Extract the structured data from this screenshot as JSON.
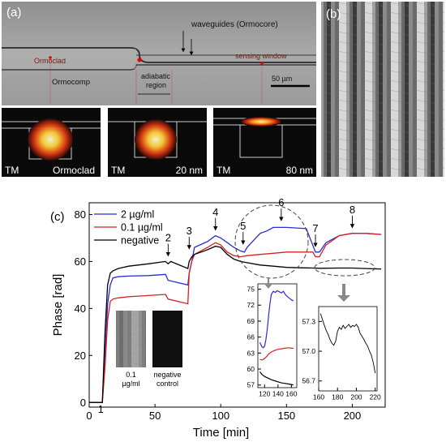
{
  "panel_labels": {
    "a": "(a)",
    "b": "(b)",
    "c": "(c)"
  },
  "micrograph": {
    "waveguides_label": "waveguides (Ormocore)",
    "ormoclad_label": "Ormoclad",
    "ormocomp_label": "Ormocomp",
    "adiabatic_label_1": "adiabatic",
    "adiabatic_label_2": "region",
    "sensing_label": "sensing window",
    "scale_label": "50 µm"
  },
  "mode_profiles": [
    {
      "mode": "TM",
      "label": "Ormoclad"
    },
    {
      "mode": "TM",
      "label": "20 nm"
    },
    {
      "mode": "TM",
      "label": "80 nm"
    }
  ],
  "colors": {
    "blue": "#2b2bd6",
    "red": "#d42020",
    "black": "#000000"
  },
  "chart_data": [
    {
      "type": "line",
      "xlabel": "Time [min]",
      "ylabel": "Phase [rad]",
      "xlim": [
        0,
        225
      ],
      "ylim": [
        -2,
        85
      ],
      "xticks": [
        0,
        50,
        100,
        150,
        200
      ],
      "yticks": [
        0,
        20,
        40,
        60,
        80
      ],
      "legend_position": "top-left",
      "series": [
        {
          "name": "2 µg/ml",
          "color": "#2b2bd6",
          "x": [
            0,
            10,
            12,
            14,
            16,
            18,
            22,
            30,
            45,
            58,
            60,
            75,
            76,
            78,
            80,
            90,
            96,
            100,
            105,
            110,
            115,
            118,
            120,
            125,
            130,
            135,
            140,
            150,
            165,
            172,
            175,
            180,
            190,
            200,
            210,
            222
          ],
          "y": [
            0,
            0,
            20,
            42,
            50,
            53,
            53.5,
            53.8,
            54,
            54.5,
            52,
            50,
            55,
            60,
            66,
            68.5,
            71,
            70,
            68,
            66,
            64.5,
            64,
            66,
            69,
            72,
            73,
            74.5,
            74.5,
            74,
            64,
            64,
            68,
            71,
            72,
            72,
            71.5
          ]
        },
        {
          "name": "0.1 µg/ml",
          "color": "#d42020",
          "x": [
            0,
            10,
            12,
            14,
            16,
            18,
            22,
            30,
            45,
            58,
            60,
            75,
            76,
            78,
            80,
            90,
            96,
            100,
            105,
            110,
            115,
            120,
            130,
            140,
            150,
            165,
            170,
            172,
            175,
            180,
            190,
            200,
            210,
            222
          ],
          "y": [
            0,
            0,
            15,
            35,
            43,
            44,
            44.5,
            45,
            45.5,
            46,
            44,
            42,
            55,
            60,
            63,
            66,
            68,
            67,
            64,
            62.5,
            62,
            62.5,
            63,
            63.5,
            64,
            64,
            64,
            62,
            62,
            67,
            71,
            72,
            72,
            71.5
          ]
        },
        {
          "name": "negative",
          "color": "#000000",
          "x": [
            0,
            10,
            12,
            14,
            16,
            18,
            22,
            30,
            45,
            58,
            60,
            62,
            75,
            76,
            78,
            80,
            90,
            96,
            100,
            105,
            110,
            115,
            120,
            130,
            140,
            150,
            160,
            170,
            175,
            190,
            200,
            210,
            222
          ],
          "y": [
            0,
            0,
            30,
            50,
            55,
            56,
            57,
            58,
            59,
            60,
            59,
            60,
            57,
            60,
            62,
            63,
            65,
            66.5,
            66,
            63,
            61,
            60,
            59.5,
            58.5,
            58,
            57.5,
            57.3,
            57.2,
            57.1,
            57.2,
            57.2,
            57,
            56.8
          ]
        }
      ],
      "annotations": [
        "1",
        "2",
        "3",
        "4",
        "5",
        "6",
        "7",
        "8"
      ]
    },
    {
      "type": "line",
      "xlim": [
        110,
        168
      ],
      "ylim": [
        56.5,
        76
      ],
      "xticks": [
        120,
        140,
        160
      ],
      "yticks": [
        57,
        60,
        63,
        66,
        69,
        72,
        75
      ],
      "series": [
        {
          "color": "#2b2bd6",
          "x": [
            113,
            116,
            118,
            120,
            122,
            124,
            126,
            128,
            130,
            133,
            136,
            139,
            142,
            145,
            148,
            151,
            154,
            157,
            160,
            163
          ],
          "y": [
            65,
            64.2,
            64,
            64.3,
            65.5,
            67.5,
            70,
            72.3,
            74,
            74.6,
            74.4,
            74.7,
            74.5,
            74.3,
            74.6,
            74,
            73.6,
            73.3,
            73,
            72.8
          ]
        },
        {
          "color": "#d42020",
          "x": [
            113,
            116,
            118,
            120,
            122,
            124,
            126,
            128,
            130,
            135,
            140,
            145,
            150,
            155,
            160,
            163
          ],
          "y": [
            61.8,
            61.7,
            61.8,
            62,
            62.2,
            62.5,
            62.8,
            63,
            63.2,
            63.5,
            63.7,
            63.8,
            63.9,
            64,
            63.9,
            63.9
          ]
        },
        {
          "color": "#000000",
          "x": [
            113,
            116,
            120,
            125,
            130,
            135,
            140,
            145,
            150,
            155,
            160,
            163
          ],
          "y": [
            59.5,
            59,
            58.6,
            58.3,
            58,
            57.8,
            57.6,
            57.4,
            57.3,
            57.2,
            57.1,
            57.0
          ]
        }
      ]
    },
    {
      "type": "line",
      "xlim": [
        160,
        222
      ],
      "ylim": [
        56.6,
        57.45
      ],
      "xticks": [
        160,
        180,
        200,
        220
      ],
      "yticks": [
        56.7,
        57.0,
        57.3
      ],
      "series": [
        {
          "color": "#000000",
          "x": [
            162,
            164,
            166,
            168,
            170,
            172,
            174,
            176,
            178,
            180,
            182,
            184,
            186,
            188,
            190,
            192,
            194,
            196,
            198,
            200,
            202,
            204,
            206,
            208,
            210,
            212,
            214,
            216,
            218,
            220
          ],
          "y": [
            57.38,
            57.32,
            57.26,
            57.21,
            57.17,
            57.12,
            57.08,
            57.06,
            57.1,
            57.2,
            57.24,
            57.22,
            57.26,
            57.23,
            57.25,
            57.27,
            57.24,
            57.26,
            57.25,
            57.27,
            57.24,
            57.18,
            57.15,
            57.12,
            57.08,
            57.05,
            57.0,
            56.96,
            56.88,
            56.78
          ]
        }
      ]
    }
  ],
  "inset_images": {
    "label_a_1": "0.1",
    "label_a_2": "µg/ml",
    "label_b_1": "negative",
    "label_b_2": "control"
  }
}
